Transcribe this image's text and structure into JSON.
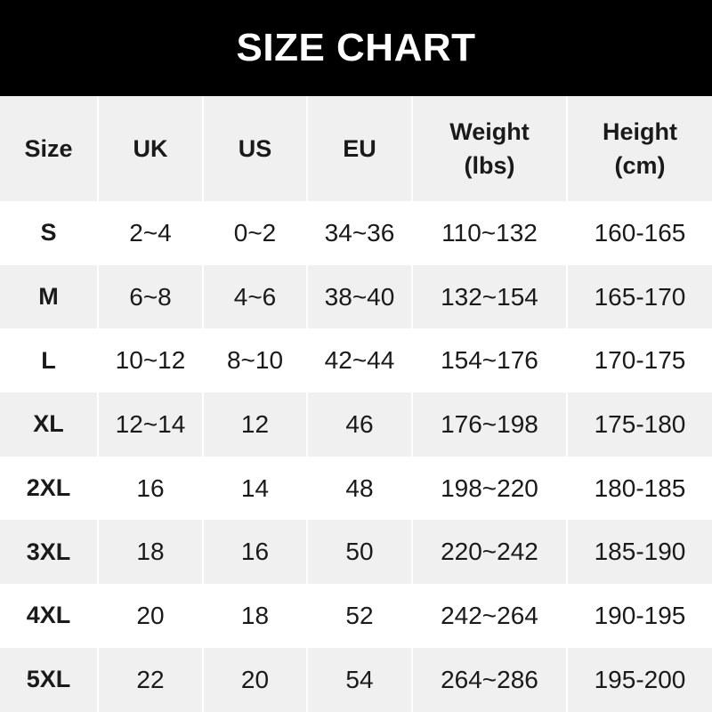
{
  "title": "SIZE CHART",
  "columns": [
    {
      "line1": "Size",
      "line2": ""
    },
    {
      "line1": "UK",
      "line2": ""
    },
    {
      "line1": "US",
      "line2": ""
    },
    {
      "line1": "EU",
      "line2": ""
    },
    {
      "line1": "Weight",
      "line2": "(lbs)"
    },
    {
      "line1": "Height",
      "line2": "(cm)"
    }
  ],
  "rows": [
    [
      "S",
      "2~4",
      "0~2",
      "34~36",
      "110~132",
      "160-165"
    ],
    [
      "M",
      "6~8",
      "4~6",
      "38~40",
      "132~154",
      "165-170"
    ],
    [
      "L",
      "10~12",
      "8~10",
      "42~44",
      "154~176",
      "170-175"
    ],
    [
      "XL",
      "12~14",
      "12",
      "46",
      "176~198",
      "175-180"
    ],
    [
      "2XL",
      "16",
      "14",
      "48",
      "198~220",
      "180-185"
    ],
    [
      "3XL",
      "18",
      "16",
      "50",
      "220~242",
      "185-190"
    ],
    [
      "4XL",
      "20",
      "18",
      "52",
      "242~264",
      "190-195"
    ],
    [
      "5XL",
      "22",
      "20",
      "54",
      "264~286",
      "195-200"
    ]
  ],
  "colors": {
    "banner": "#000000",
    "stripe": "#f0f0f0",
    "text": "#1a1a1a"
  }
}
